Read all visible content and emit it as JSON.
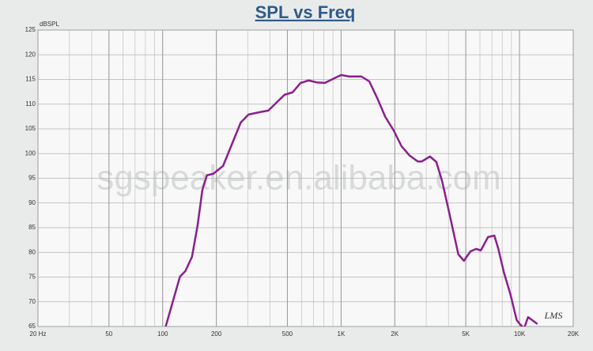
{
  "chart_data": {
    "type": "line",
    "title": "SPL vs Freq",
    "y_label": "dBSPL",
    "watermark": "sgspeaker.en.alibaba.com",
    "logo": "LMS",
    "log_x": true,
    "grid": true,
    "xlim": [
      20,
      20000
    ],
    "ylim": [
      65,
      125
    ],
    "xticks": [
      {
        "value": 20,
        "label": "20 Hz"
      },
      50,
      100,
      200,
      500,
      {
        "value": 1000,
        "label": "1K"
      },
      {
        "value": 2000,
        "label": "2K"
      },
      {
        "value": 5000,
        "label": "5K"
      },
      {
        "value": 10000,
        "label": "10K"
      },
      {
        "value": 20000,
        "label": "20K"
      }
    ],
    "yticks": [
      65,
      70,
      75,
      80,
      85,
      90,
      95,
      100,
      105,
      110,
      115,
      120,
      125
    ],
    "x": [
      104,
      125,
      134,
      146,
      157,
      167,
      177,
      192,
      218,
      247,
      274,
      303,
      352,
      391,
      434,
      482,
      535,
      593,
      658,
      731,
      811,
      900,
      1000,
      1110,
      1300,
      1440,
      1600,
      1770,
      1970,
      2180,
      2420,
      2690,
      2830,
      3150,
      3420,
      3690,
      4090,
      4540,
      4880,
      5310,
      5710,
      6070,
      6660,
      7230,
      7610,
      8180,
      8880,
      9640,
      10040,
      10600,
      11170,
      12600
    ],
    "series": [
      {
        "name": "SPL",
        "color": "#8b1f8e",
        "values": [
          65,
          75.1,
          76.2,
          79.1,
          85.5,
          92.7,
          95.6,
          95.9,
          97.5,
          102.3,
          106.3,
          107.9,
          108.4,
          108.7,
          110.3,
          111.9,
          112.4,
          114.3,
          114.8,
          114.4,
          114.3,
          115.1,
          115.9,
          115.6,
          115.6,
          114.6,
          111.1,
          107.4,
          104.7,
          101.5,
          99.6,
          98.4,
          98.4,
          99.4,
          98.3,
          94.3,
          87.1,
          79.6,
          78.3,
          80.2,
          80.7,
          80.4,
          83.1,
          83.4,
          80.7,
          75.9,
          71.6,
          66.3,
          65.5,
          64.6,
          66.9,
          65.5
        ]
      }
    ]
  }
}
